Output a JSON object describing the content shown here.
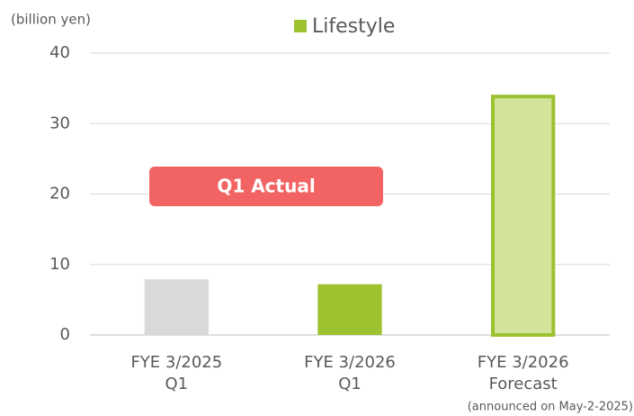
{
  "chart_data": {
    "type": "bar",
    "unit_label": "(billion yen)",
    "legend": {
      "name": "Lifestyle",
      "color": "#9dc230"
    },
    "categories": [
      [
        "FYE 3/2025",
        "Q1"
      ],
      [
        "FYE 3/2026",
        "Q1"
      ],
      [
        "FYE 3/2026",
        "Forecast"
      ]
    ],
    "values": [
      7.9,
      7.2,
      34.1
    ],
    "colors": [
      "#d9d9d9",
      "#9dc230",
      "#d3e39c"
    ],
    "edge_colors": [
      null,
      null,
      "#9dc230"
    ],
    "ylim": [
      0,
      40
    ],
    "yticks": [
      0,
      10,
      20,
      30,
      40
    ],
    "grid": true,
    "badge": {
      "text": "Q1 Actual",
      "color": "#f26464"
    },
    "note": "(announced on May-2-2025)"
  }
}
